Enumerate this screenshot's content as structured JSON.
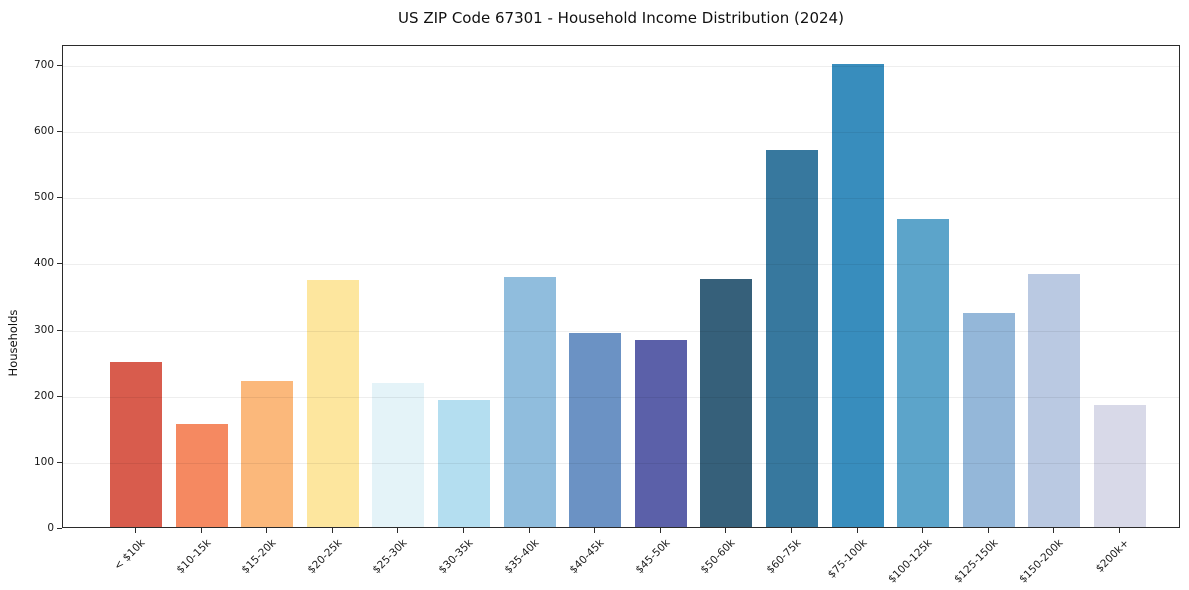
{
  "chart_data": {
    "type": "bar",
    "title": "US ZIP Code 67301 - Household Income Distribution (2024)",
    "xlabel": "",
    "ylabel": "Households",
    "categories": [
      "< $10k",
      "$10-15k",
      "$15-20k",
      "$20-25k",
      "$25-30k",
      "$30-35k",
      "$35-40k",
      "$40-45k",
      "$45-50k",
      "$50-60k",
      "$60-75k",
      "$75-100k",
      "$100-125k",
      "$125-150k",
      "$150-200k",
      "$200k+"
    ],
    "values": [
      250,
      155,
      220,
      373,
      218,
      192,
      378,
      294,
      282,
      375,
      570,
      700,
      465,
      323,
      383,
      185
    ],
    "bar_colors": [
      "#d85c4d",
      "#f58961",
      "#fbb87b",
      "#fde69e",
      "#e4f3f8",
      "#b4def0",
      "#90bddd",
      "#6b92c4",
      "#5b60a9",
      "#36607a",
      "#37789e",
      "#388dbd",
      "#5ca4ca",
      "#94b7d9",
      "#bac9e2",
      "#d8d9e8"
    ],
    "ylim": [
      0,
      730
    ],
    "yticks": [
      0,
      100,
      200,
      300,
      400,
      500,
      600,
      700
    ],
    "grid": "horizontal",
    "grid_color": "#ededed",
    "frame_color": "#2b2b2b",
    "background": "#ffffff",
    "legend": "none",
    "x_tick_label_rotation_deg": 45
  }
}
